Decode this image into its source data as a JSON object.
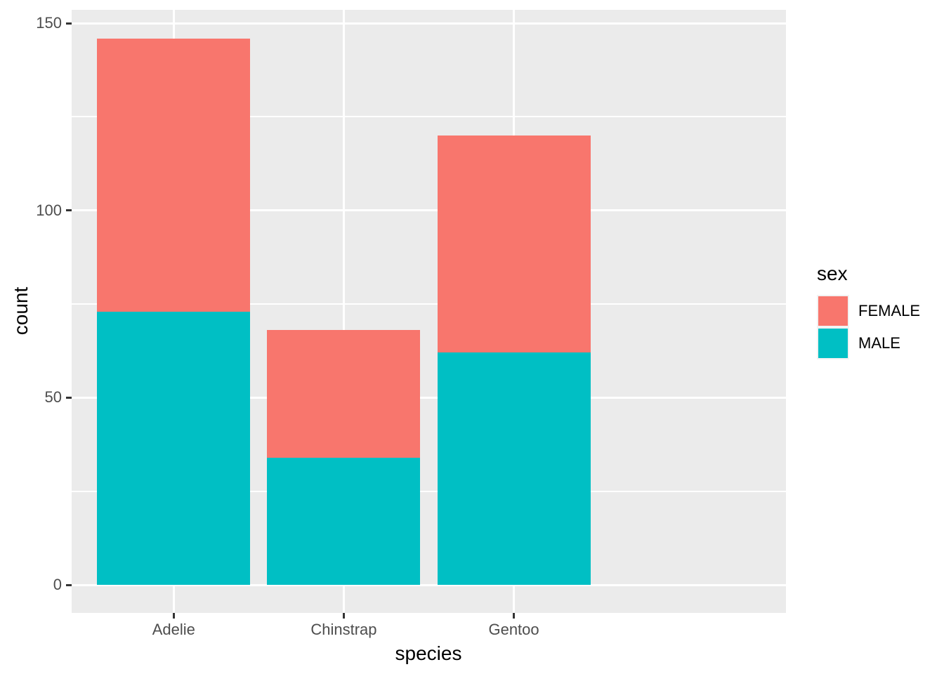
{
  "figure": {
    "background": "#FFFFFF",
    "panel_background": "#EBEBEB",
    "grid_color": "#FFFFFF",
    "tick_mark_color": "#333333",
    "tick_label_color": "#4D4D4D",
    "axis_title_color": "#000000"
  },
  "chart_data": {
    "type": "bar",
    "stacked": true,
    "orientation": "vertical",
    "title": "",
    "xlabel": "species",
    "ylabel": "count",
    "categories": [
      "Adelie",
      "Chinstrap",
      "Gentoo"
    ],
    "series": [
      {
        "name": "MALE",
        "color": "#00BFC4",
        "values": [
          73,
          34,
          62
        ]
      },
      {
        "name": "FEMALE",
        "color": "#F8766D",
        "values": [
          73,
          34,
          58
        ]
      }
    ],
    "stack_order_bottom_to_top": [
      "MALE",
      "FEMALE"
    ],
    "totals": [
      146,
      68,
      120
    ],
    "y_ticks": [
      0,
      50,
      100,
      150
    ],
    "y_minor_ticks": [
      25,
      75,
      125
    ],
    "ylim": [
      -7.5,
      153.6
    ],
    "x_expand": 0.6,
    "bar_width_fraction": 0.9,
    "grid": "major-and-minor, white on gray panel",
    "legend": {
      "title": "sex",
      "position": "right",
      "entries": [
        {
          "label": "FEMALE",
          "color": "#F8766D"
        },
        {
          "label": "MALE",
          "color": "#00BFC4"
        }
      ]
    }
  }
}
